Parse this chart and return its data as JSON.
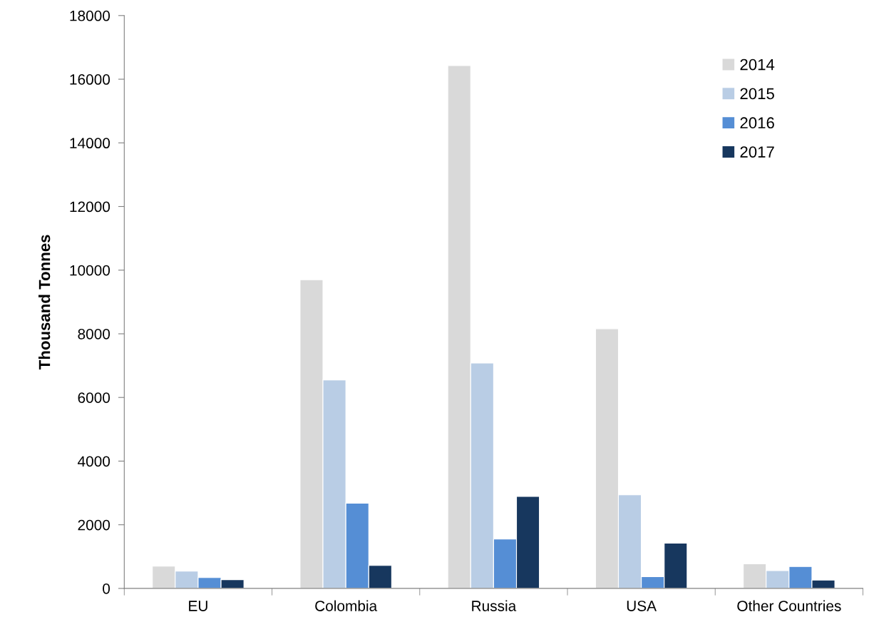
{
  "chart_data": {
    "type": "bar",
    "ylabel": "Thousand Tonnes",
    "categories": [
      "EU",
      "Colombia",
      "Russia",
      "USA",
      "Other Countries"
    ],
    "series": [
      {
        "name": "2014",
        "color": "#d9d9d9",
        "values": [
          700,
          9700,
          16430,
          8160,
          770
        ]
      },
      {
        "name": "2015",
        "color": "#b9cde5",
        "values": [
          540,
          6550,
          7080,
          2940,
          560
        ]
      },
      {
        "name": "2016",
        "color": "#558ed5",
        "values": [
          340,
          2680,
          1550,
          370,
          690
        ]
      },
      {
        "name": "2017",
        "color": "#17375e",
        "values": [
          275,
          720,
          2890,
          1420,
          260
        ]
      }
    ],
    "ylim": [
      0,
      18000
    ],
    "yticks": [
      0,
      2000,
      4000,
      6000,
      8000,
      10000,
      12000,
      14000,
      16000,
      18000
    ],
    "grid": false,
    "legend": "top right"
  }
}
